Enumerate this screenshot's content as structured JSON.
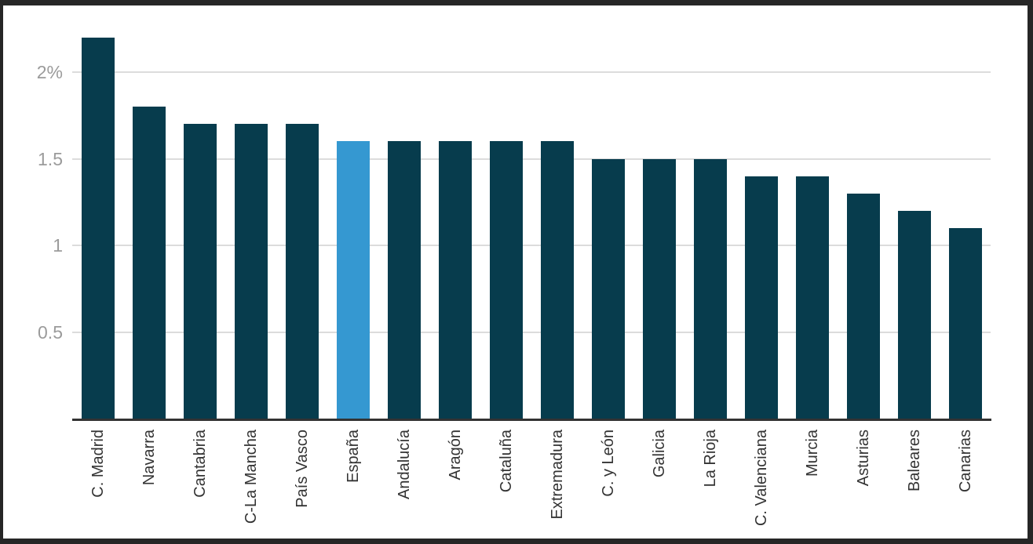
{
  "chart_data": {
    "type": "bar",
    "categories": [
      "C. Madrid",
      "Navarra",
      "Cantabria",
      "C-La Mancha",
      "País Vasco",
      "España",
      "Andalucía",
      "Aragón",
      "Cataluña",
      "Extremadura",
      "C. y León",
      "Galicia",
      "La Rioja",
      "C. Valenciana",
      "Murcia",
      "Asturias",
      "Baleares",
      "Canarias"
    ],
    "values": [
      2.2,
      1.8,
      1.7,
      1.7,
      1.7,
      1.6,
      1.6,
      1.6,
      1.6,
      1.6,
      1.5,
      1.5,
      1.5,
      1.4,
      1.4,
      1.3,
      1.2,
      1.1
    ],
    "unit": "%",
    "highlight_category": "España",
    "y_ticks": [
      {
        "value": 0.5,
        "label": "0.5"
      },
      {
        "value": 1,
        "label": "1"
      },
      {
        "value": 1.5,
        "label": "1.5"
      },
      {
        "value": 2,
        "label": "2%"
      }
    ],
    "ylim": [
      0,
      2.35
    ],
    "grid": true,
    "legend": "none",
    "x_labels_rotated": "vertical-bottom-to-top",
    "colors": {
      "bar": "#073C4D",
      "highlight": "#3598D1",
      "gridline": "#DCDCDC",
      "axis_line": "#333333",
      "y_tick_text": "#9B9B9B",
      "x_tick_text": "#333333",
      "frame": "#262626",
      "background": "#FFFFFF"
    }
  }
}
